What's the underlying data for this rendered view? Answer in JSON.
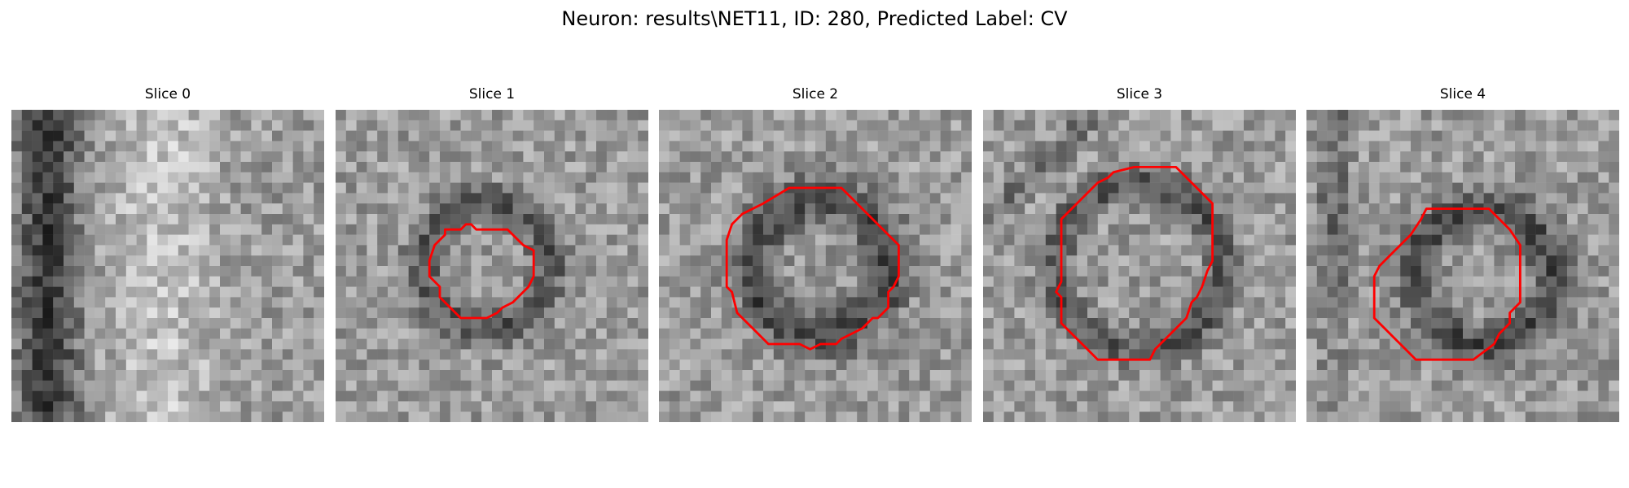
{
  "figure": {
    "title": "Neuron: results\\NET11, ID: 280, Predicted Label: CV"
  },
  "colors": {
    "contour": "#ff0000",
    "background": "#ffffff"
  },
  "colormap": "gray",
  "slices": [
    {
      "title": "Slice 0",
      "has_contour": false
    },
    {
      "title": "Slice 1",
      "has_contour": true
    },
    {
      "title": "Slice 2",
      "has_contour": true
    },
    {
      "title": "Slice 3",
      "has_contour": true
    },
    {
      "title": "Slice 4",
      "has_contour": true
    }
  ]
}
